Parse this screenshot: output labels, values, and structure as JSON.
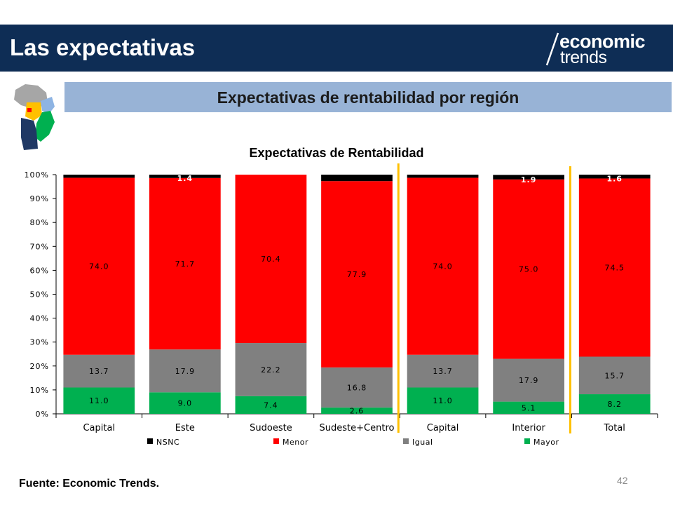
{
  "header": {
    "title": "Las expectativas",
    "logo_line1": "economic",
    "logo_line2": "trends",
    "background_color": "#0e2d55"
  },
  "map_icon": "argentina-regions-map-icon",
  "subtitle": "Expectativas de rentabilidad por región",
  "footer": {
    "source": "Fuente: Economic Trends.",
    "page_number": "42"
  },
  "chart_data": {
    "type": "bar",
    "stacked": true,
    "percent_stacked": true,
    "title": "Expectativas de Rentabilidad",
    "xlabel": "",
    "ylabel": "",
    "ylim": [
      0,
      100
    ],
    "yticks": [
      "0%",
      "10%",
      "20%",
      "30%",
      "40%",
      "50%",
      "60%",
      "70%",
      "80%",
      "90%",
      "100%"
    ],
    "categories": [
      "Capital",
      "Este",
      "Sudoeste",
      "Sudeste+Centro",
      "Capital",
      "Interior",
      "Total"
    ],
    "series": [
      {
        "name": "Mayor",
        "color": "#00b050",
        "values": [
          11.0,
          9.0,
          7.4,
          2.6,
          11.0,
          5.1,
          8.2
        ]
      },
      {
        "name": "Igual",
        "color": "#808080",
        "values": [
          13.7,
          17.9,
          22.2,
          16.8,
          13.7,
          17.9,
          15.7
        ]
      },
      {
        "name": "Menor",
        "color": "#ff0000",
        "values": [
          74.0,
          71.7,
          70.4,
          77.9,
          74.0,
          75.0,
          74.5
        ]
      },
      {
        "name": "NSNC",
        "color": "#000000",
        "values": [
          1.4,
          1.4,
          0.0,
          2.7,
          1.4,
          1.9,
          1.6
        ]
      }
    ],
    "data_labels": {
      "Mayor": [
        "11.0",
        "9.0",
        "7.4",
        "2.6",
        "11.0",
        "5.1",
        "8.2"
      ],
      "Igual": [
        "13.7",
        "17.9",
        "22.2",
        "16.8",
        "13.7",
        "17.9",
        "15.7"
      ],
      "Menor": [
        "74.0",
        "71.7",
        "70.4",
        "77.9",
        "74.0",
        "75.0",
        "74.5"
      ],
      "NSNC": [
        "",
        "1.4",
        "",
        "",
        "",
        "1.9",
        "1.6"
      ]
    },
    "legend_order": [
      "NSNC",
      "Menor",
      "Igual",
      "Mayor"
    ],
    "legend_position": "bottom",
    "separator_color": "#ffc000",
    "grid": false
  }
}
